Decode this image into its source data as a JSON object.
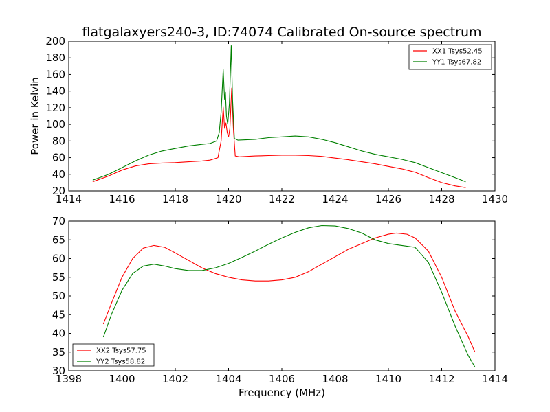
{
  "title": "flatgalaxyers240-3, ID:74074 Calibrated On-source spectrum",
  "xlabel": "Frequency (MHz)",
  "chart_data": [
    {
      "type": "line",
      "ylabel": "Power in Kelvin",
      "xlim": [
        1414,
        1430
      ],
      "ylim": [
        20,
        200
      ],
      "xticks": [
        1414,
        1416,
        1418,
        1420,
        1422,
        1424,
        1426,
        1428,
        1430
      ],
      "yticks": [
        20,
        40,
        60,
        80,
        100,
        120,
        140,
        160,
        180,
        200
      ],
      "legend_position": "top-right",
      "grid": false,
      "series": [
        {
          "name": "XX1 Tsys52.45",
          "color": "#ff0000",
          "x": [
            1414.9,
            1415.5,
            1416.0,
            1416.5,
            1417.0,
            1417.5,
            1418.0,
            1418.5,
            1419.0,
            1419.3,
            1419.6,
            1419.72,
            1419.8,
            1419.85,
            1419.9,
            1419.95,
            1420.0,
            1420.05,
            1420.12,
            1420.18,
            1420.25,
            1420.4,
            1421.0,
            1421.5,
            1422.0,
            1422.5,
            1423.0,
            1423.5,
            1424.0,
            1424.5,
            1425.0,
            1425.5,
            1426.0,
            1426.5,
            1427.0,
            1427.5,
            1428.0,
            1428.5,
            1428.9
          ],
          "y": [
            31,
            38,
            45,
            50,
            52.5,
            53.5,
            54,
            55,
            56,
            57,
            60,
            80,
            121,
            95,
            102,
            90,
            85,
            95,
            144,
            95,
            62,
            61,
            62,
            62.5,
            63,
            63,
            62.5,
            61.5,
            59.5,
            57.5,
            55,
            52.5,
            49.5,
            46.5,
            42.5,
            36,
            30,
            26,
            24
          ]
        },
        {
          "name": "YY1 Tsys67.82",
          "color": "#008000",
          "x": [
            1414.9,
            1415.5,
            1416.0,
            1416.5,
            1417.0,
            1417.5,
            1418.0,
            1418.5,
            1419.0,
            1419.3,
            1419.55,
            1419.65,
            1419.72,
            1419.8,
            1419.85,
            1419.88,
            1419.92,
            1419.97,
            1420.03,
            1420.1,
            1420.15,
            1420.22,
            1420.35,
            1421.0,
            1421.5,
            1422.0,
            1422.5,
            1423.0,
            1423.5,
            1424.0,
            1424.5,
            1425.0,
            1425.5,
            1426.0,
            1426.5,
            1427.0,
            1427.5,
            1428.0,
            1428.5,
            1428.9
          ],
          "y": [
            33,
            40,
            48,
            56,
            63,
            68,
            71,
            74,
            76,
            77,
            80,
            90,
            115,
            166,
            130,
            139,
            110,
            100,
            125,
            195,
            130,
            83,
            81,
            82,
            84,
            85,
            86,
            85,
            82,
            78,
            73,
            68,
            64,
            61,
            58,
            54,
            48,
            42,
            36,
            31
          ]
        }
      ]
    },
    {
      "type": "line",
      "ylabel": "",
      "xlim": [
        1398,
        1414
      ],
      "ylim": [
        30,
        70
      ],
      "xticks": [
        1398,
        1400,
        1402,
        1404,
        1406,
        1408,
        1410,
        1412,
        1414
      ],
      "yticks": [
        30,
        35,
        40,
        45,
        50,
        55,
        60,
        65,
        70
      ],
      "legend_position": "lower-left",
      "grid": false,
      "series": [
        {
          "name": "XX2 Tsys57.75",
          "color": "#ff0000",
          "x": [
            1399.3,
            1399.6,
            1400.0,
            1400.4,
            1400.8,
            1401.2,
            1401.6,
            1402.0,
            1402.5,
            1403.0,
            1403.5,
            1404.0,
            1404.5,
            1405.0,
            1405.5,
            1406.0,
            1406.5,
            1407.0,
            1407.5,
            1408.0,
            1408.5,
            1409.0,
            1409.5,
            1410.0,
            1410.3,
            1410.7,
            1411.0,
            1411.5,
            1412.0,
            1412.5,
            1413.0,
            1413.25
          ],
          "y": [
            42.5,
            48,
            55,
            60,
            62.8,
            63.5,
            63,
            61.5,
            59.5,
            57.5,
            56,
            55,
            54.3,
            54,
            54,
            54.3,
            55,
            56.5,
            58.5,
            60.5,
            62.5,
            64,
            65.5,
            66.5,
            66.8,
            66.5,
            65.5,
            62,
            55,
            46,
            39,
            35
          ]
        },
        {
          "name": "YY2 Tsys58.82",
          "color": "#008000",
          "x": [
            1399.3,
            1399.6,
            1400.0,
            1400.4,
            1400.8,
            1401.2,
            1401.6,
            1402.0,
            1402.5,
            1403.0,
            1403.5,
            1404.0,
            1404.5,
            1405.0,
            1405.5,
            1406.0,
            1406.5,
            1407.0,
            1407.5,
            1408.0,
            1408.5,
            1409.0,
            1409.5,
            1410.0,
            1410.5,
            1411.0,
            1411.5,
            1412.0,
            1412.5,
            1413.0,
            1413.25
          ],
          "y": [
            39,
            45,
            51.5,
            56,
            58,
            58.5,
            58,
            57.3,
            56.8,
            56.8,
            57.5,
            58.7,
            60.3,
            62,
            63.8,
            65.5,
            67,
            68.2,
            68.8,
            68.7,
            68,
            66.8,
            65,
            64,
            63.5,
            63,
            59,
            51,
            42,
            34,
            31
          ]
        }
      ]
    }
  ]
}
